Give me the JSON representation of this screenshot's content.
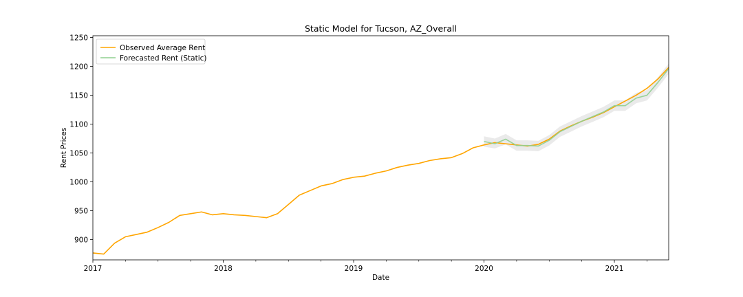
{
  "chart_data": {
    "type": "line",
    "title": "Static Model for Tucson, AZ_Overall",
    "xlabel": "Date",
    "ylabel": "Rent Prices",
    "xlim": [
      "2017-01",
      "2021-06"
    ],
    "ylim": [
      865,
      1253
    ],
    "x_ticks": [
      {
        "date": "2017-01",
        "label": "2017"
      },
      {
        "date": "2018-01",
        "label": "2018"
      },
      {
        "date": "2019-01",
        "label": "2019"
      },
      {
        "date": "2020-01",
        "label": "2020"
      },
      {
        "date": "2021-01",
        "label": "2021"
      }
    ],
    "y_ticks": [
      900,
      950,
      1000,
      1050,
      1100,
      1150,
      1200,
      1250
    ],
    "grid": false,
    "legend": {
      "position": "top-left"
    },
    "colors": {
      "observed": "#ffa500",
      "forecast": "#8fcf8f",
      "band": "#d9d9d9"
    },
    "series": [
      {
        "name": "Observed Average Rent",
        "x": [
          "2017-01",
          "2017-02",
          "2017-03",
          "2017-04",
          "2017-05",
          "2017-06",
          "2017-07",
          "2017-08",
          "2017-09",
          "2017-10",
          "2017-11",
          "2017-12",
          "2018-01",
          "2018-02",
          "2018-03",
          "2018-04",
          "2018-05",
          "2018-06",
          "2018-07",
          "2018-08",
          "2018-09",
          "2018-10",
          "2018-11",
          "2018-12",
          "2019-01",
          "2019-02",
          "2019-03",
          "2019-04",
          "2019-05",
          "2019-06",
          "2019-07",
          "2019-08",
          "2019-09",
          "2019-10",
          "2019-11",
          "2019-12",
          "2020-01",
          "2020-02",
          "2020-03",
          "2020-04",
          "2020-05",
          "2020-06",
          "2020-07",
          "2020-08",
          "2020-09",
          "2020-10",
          "2020-11",
          "2020-12",
          "2021-01",
          "2021-02",
          "2021-03",
          "2021-04",
          "2021-05",
          "2021-06"
        ],
        "values": [
          877,
          875,
          894,
          905,
          909,
          913,
          921,
          930,
          942,
          945,
          948,
          943,
          945,
          943,
          942,
          940,
          938,
          945,
          961,
          977,
          985,
          993,
          997,
          1004,
          1008,
          1010,
          1015,
          1019,
          1025,
          1029,
          1032,
          1037,
          1040,
          1042,
          1049,
          1059,
          1064,
          1068,
          1066,
          1064,
          1062,
          1065,
          1074,
          1088,
          1097,
          1105,
          1112,
          1120,
          1130,
          1140,
          1150,
          1162,
          1178,
          1198
        ]
      },
      {
        "name": "Forecasted Rent (Static)",
        "x": [
          "2020-01",
          "2020-02",
          "2020-03",
          "2020-04",
          "2020-05",
          "2020-06",
          "2020-07",
          "2020-08",
          "2020-09",
          "2020-10",
          "2020-11",
          "2020-12",
          "2021-01",
          "2021-02",
          "2021-03",
          "2021-04",
          "2021-05",
          "2021-06"
        ],
        "values": [
          1070,
          1066,
          1074,
          1063,
          1063,
          1062,
          1072,
          1087,
          1096,
          1105,
          1113,
          1121,
          1132,
          1132,
          1145,
          1150,
          1172,
          1196
        ],
        "lower": [
          1061,
          1058,
          1065,
          1054,
          1054,
          1053,
          1063,
          1078,
          1087,
          1096,
          1104,
          1112,
          1123,
          1123,
          1136,
          1141,
          1163,
          1187
        ],
        "upper": [
          1079,
          1075,
          1083,
          1072,
          1072,
          1071,
          1081,
          1096,
          1105,
          1114,
          1122,
          1130,
          1141,
          1141,
          1154,
          1159,
          1181,
          1205
        ]
      }
    ]
  }
}
